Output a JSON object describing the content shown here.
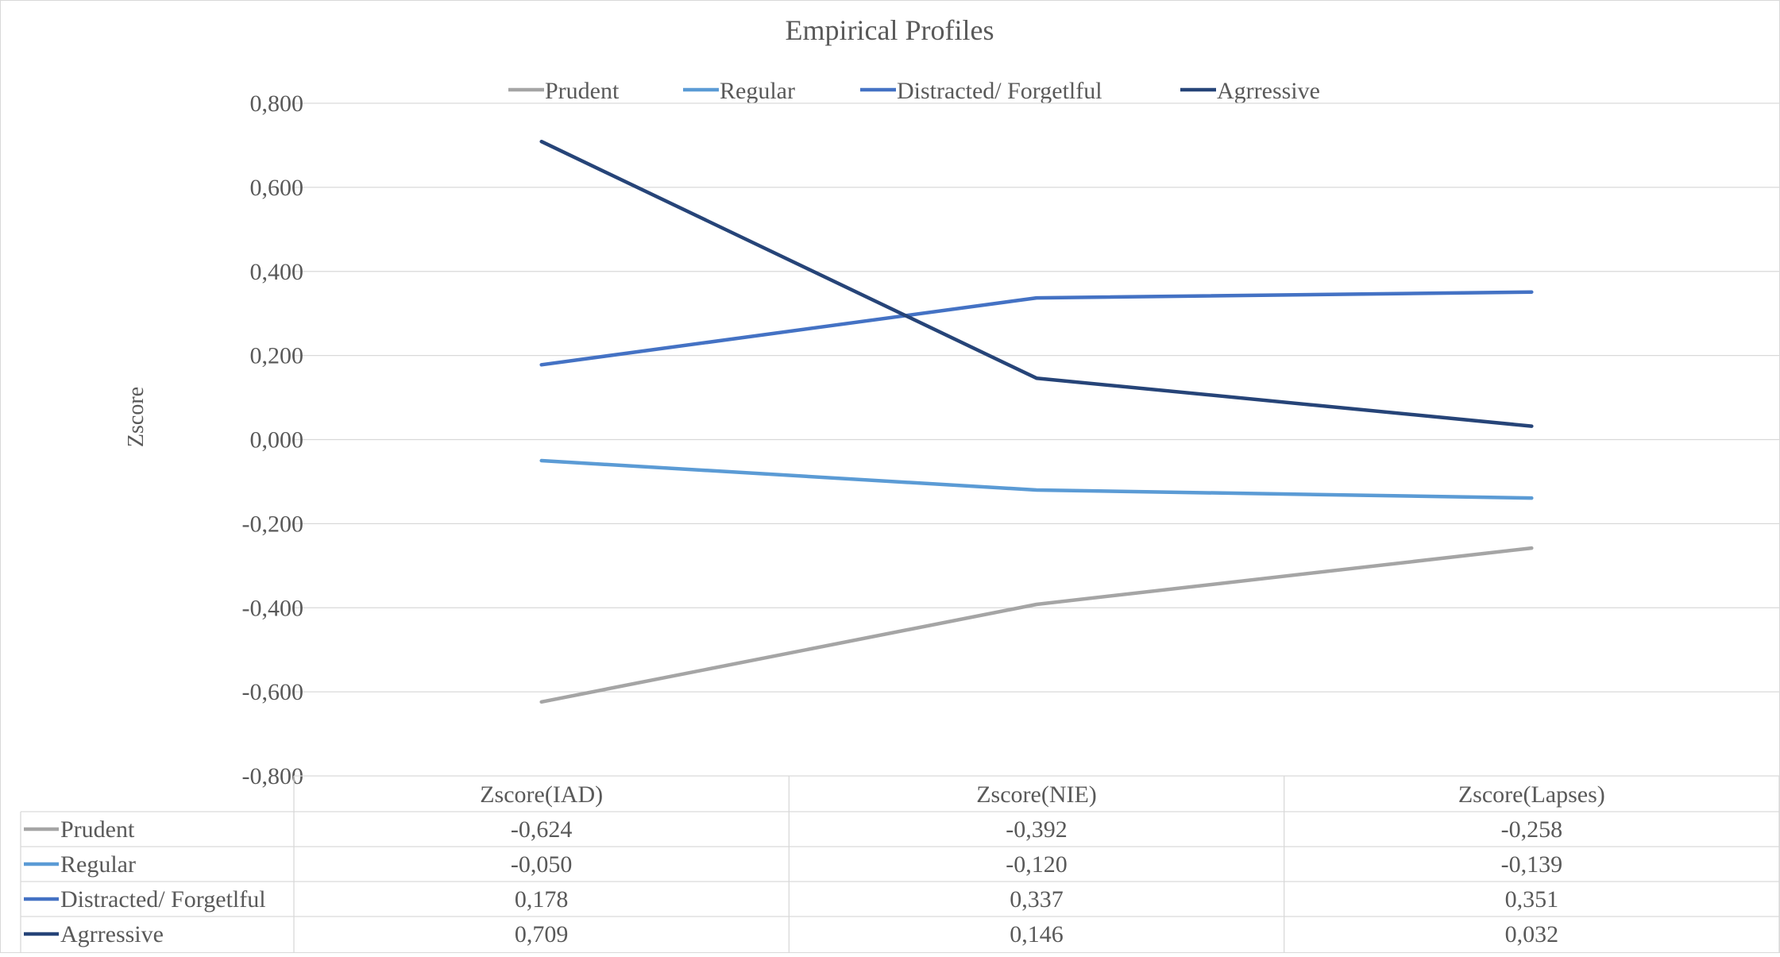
{
  "chart_data": {
    "type": "line",
    "title": "Empirical Profiles",
    "xlabel": "",
    "ylabel": "Zscore",
    "ylim": [
      -0.8,
      0.8
    ],
    "yticks": [
      0.8,
      0.6,
      0.4,
      0.2,
      0.0,
      -0.2,
      -0.4,
      -0.6,
      -0.8
    ],
    "ytick_labels": [
      "0,800",
      "0,600",
      "0,400",
      "0,200",
      "0,000",
      "-0,200",
      "-0,400",
      "-0,600",
      "-0,800"
    ],
    "grid": true,
    "legend_position": "top",
    "categories": [
      "Zscore(IAD)",
      "Zscore(NIE)",
      "Zscore(Lapses)"
    ],
    "series": [
      {
        "name": "Prudent",
        "color": "#a5a5a5",
        "values": [
          -0.624,
          -0.392,
          -0.258
        ],
        "labels": [
          "-0,624",
          "-0,392",
          "-0,258"
        ]
      },
      {
        "name": "Regular",
        "color": "#5b9bd5",
        "values": [
          -0.05,
          -0.12,
          -0.139
        ],
        "labels": [
          "-0,050",
          "-0,120",
          "-0,139"
        ]
      },
      {
        "name": "Distracted/ Forgetlful",
        "color": "#4472c4",
        "values": [
          0.178,
          0.337,
          0.351
        ],
        "labels": [
          "0,178",
          "0,337",
          "0,351"
        ]
      },
      {
        "name": "Agrressive",
        "color": "#264478",
        "values": [
          0.709,
          0.146,
          0.032
        ],
        "labels": [
          "0,709",
          "0,146",
          "0,032"
        ]
      }
    ],
    "data_table": true
  }
}
